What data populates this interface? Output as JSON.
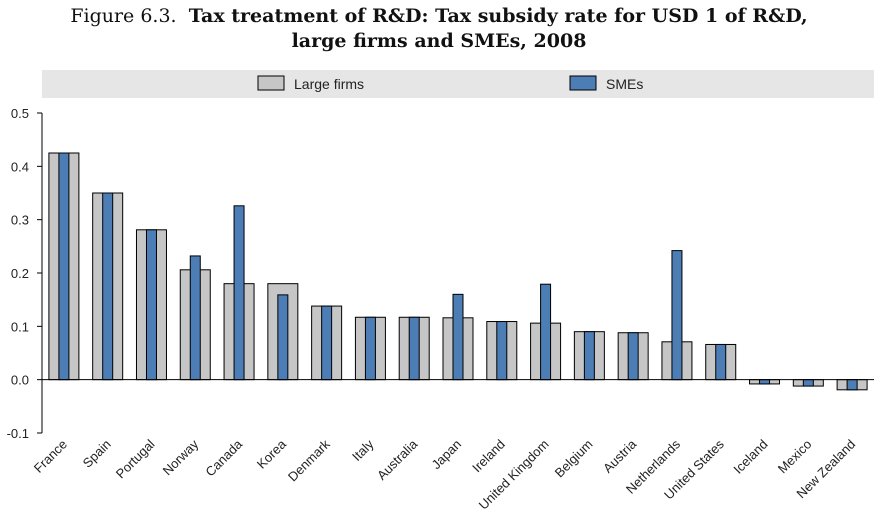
{
  "figure": {
    "number": "Figure 6.3.",
    "title_line1": "Tax treatment of R&D: Tax subsidy rate for USD 1 of R&D,",
    "title_line2": "large firms and SMEs, 2008"
  },
  "colors": {
    "large_firms": "#c6c6c6",
    "smes": "#4d7db5",
    "legend_band": "#e6e6e6",
    "axis": "#000000"
  },
  "chart_data": {
    "type": "bar",
    "title": "Tax treatment of R&D: Tax subsidy rate for USD 1 of R&D, large firms and SMEs, 2008",
    "xlabel": "",
    "ylabel": "",
    "ylim": [
      -0.1,
      0.5
    ],
    "yticks": [
      "0.5",
      "0.4",
      "0.3",
      "0.2",
      "0.1",
      "0.0",
      "-0.1"
    ],
    "grid": false,
    "legend_position": "top",
    "categories": [
      "France",
      "Spain",
      "Portugal",
      "Norway",
      "Canada",
      "Korea",
      "Denmark",
      "Italy",
      "Australia",
      "Japan",
      "Ireland",
      "United Kingdom",
      "Belgium",
      "Austria",
      "Netherlands",
      "United States",
      "Iceland",
      "Mexico",
      "New Zealand"
    ],
    "series": [
      {
        "name": "Large firms",
        "values": [
          0.425,
          0.35,
          0.281,
          0.206,
          0.18,
          0.18,
          0.138,
          0.117,
          0.117,
          0.116,
          0.109,
          0.106,
          0.09,
          0.088,
          0.071,
          0.066,
          -0.008,
          -0.012,
          -0.019
        ]
      },
      {
        "name": "SMEs",
        "values": [
          0.425,
          0.35,
          0.281,
          0.232,
          0.326,
          0.159,
          0.138,
          0.117,
          0.117,
          0.16,
          0.109,
          0.179,
          0.09,
          0.088,
          0.242,
          0.066,
          -0.008,
          -0.012,
          -0.019
        ]
      }
    ]
  }
}
